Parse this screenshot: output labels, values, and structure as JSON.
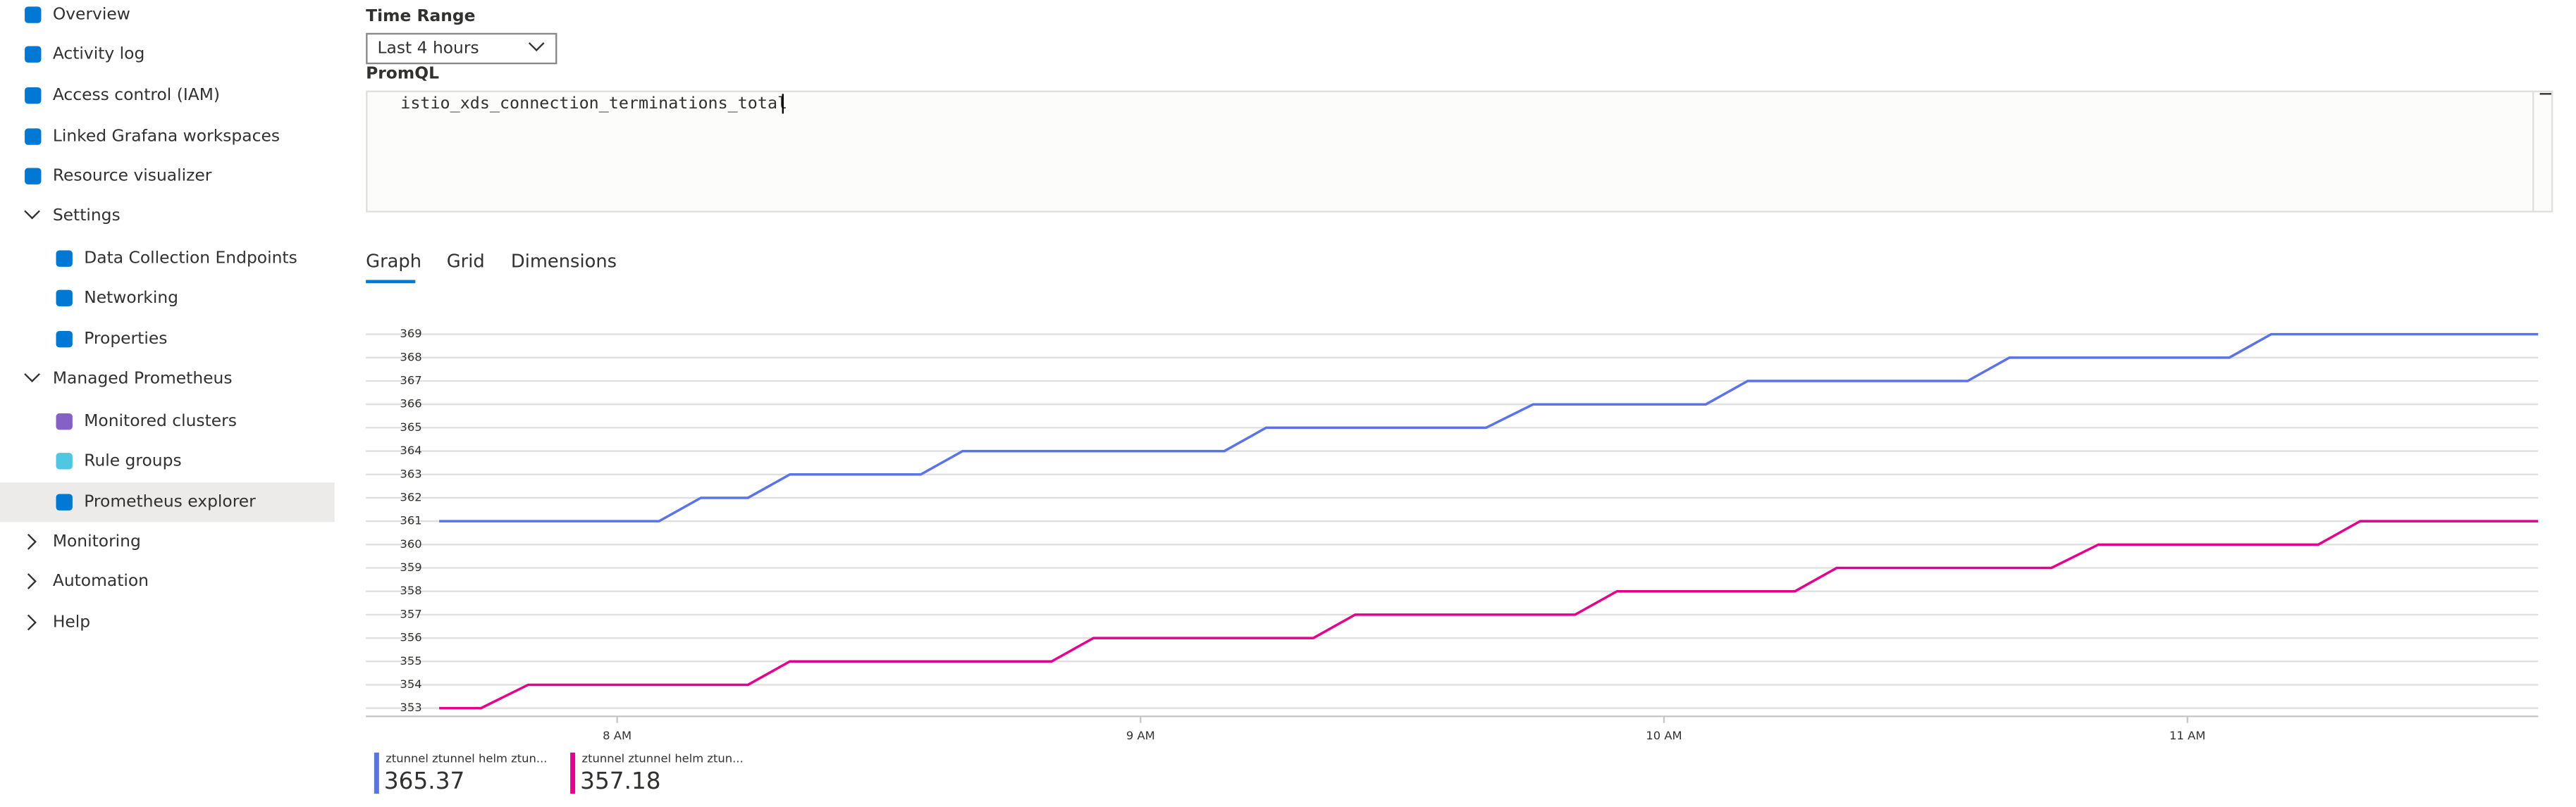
{
  "sidebar": {
    "items": [
      "Overview",
      "Activity log",
      "Access control (IAM)",
      "Linked Grafana workspaces",
      "Resource visualizer",
      "Settings",
      "Data Collection Endpoints",
      "Networking",
      "Properties",
      "Managed Prometheus",
      "Monitored clusters",
      "Rule groups",
      "Prometheus explorer",
      "Monitoring",
      "Automation",
      "Help"
    ]
  },
  "time_range": {
    "label": "Time Range",
    "value": "Last 4 hours"
  },
  "promql": {
    "label": "PromQL",
    "query": "istio_xds_connection_terminations_total"
  },
  "tabs": [
    "Graph",
    "Grid",
    "Dimensions"
  ],
  "chart_data": {
    "type": "line",
    "xlim": [
      7.52,
      11.67
    ],
    "xticks": [
      {
        "value": 8,
        "label": "8 AM"
      },
      {
        "value": 9,
        "label": "9 AM"
      },
      {
        "value": 10,
        "label": "10 AM"
      },
      {
        "value": 11,
        "label": "11 AM"
      }
    ],
    "ylim": [
      352.65,
      369.35
    ],
    "yticks": [
      353,
      354,
      355,
      356,
      357,
      358,
      359,
      360,
      361,
      362,
      363,
      364,
      365,
      366,
      367,
      368,
      369
    ],
    "grid": true,
    "series": [
      {
        "name": "ztunnel ztunnel helm ztun...",
        "color": "#5b73e8",
        "summary": 365.37,
        "x": [
          7.66,
          8.08,
          8.16,
          8.25,
          8.33,
          8.58,
          8.66,
          9.16,
          9.24,
          9.66,
          9.75,
          10.08,
          10.16,
          10.58,
          10.66,
          11.08,
          11.16,
          11.67
        ],
        "values": [
          361,
          361,
          362,
          362,
          363,
          363,
          364,
          364,
          365,
          365,
          366,
          366,
          367,
          367,
          368,
          368,
          369,
          369
        ]
      },
      {
        "name": "ztunnel ztunnel helm ztun...",
        "color": "#e3008c",
        "summary": 357.18,
        "x": [
          7.66,
          7.74,
          7.83,
          8.25,
          8.33,
          8.83,
          8.91,
          9.33,
          9.41,
          9.83,
          9.91,
          10.25,
          10.33,
          10.74,
          10.83,
          11.25,
          11.33,
          11.67
        ],
        "values": [
          353,
          353,
          354,
          354,
          355,
          355,
          356,
          356,
          357,
          357,
          358,
          358,
          359,
          359,
          360,
          360,
          361,
          361
        ]
      }
    ]
  }
}
